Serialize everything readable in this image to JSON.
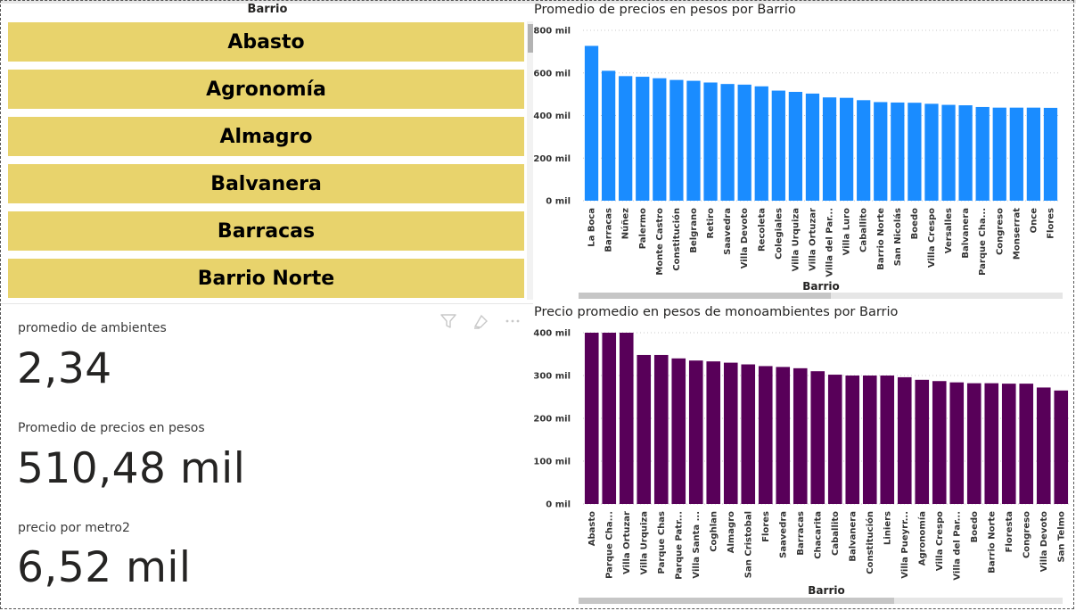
{
  "slicer": {
    "title": "Barrio",
    "items": [
      "Abasto",
      "Agronomía",
      "Almagro",
      "Balvanera",
      "Barracas",
      "Barrio Norte"
    ]
  },
  "cards": [
    {
      "label": "promedio de ambientes",
      "value": "2,34"
    },
    {
      "label": "Promedio de precios en pesos",
      "value": "510,48 mil"
    },
    {
      "label": "precio por metro2",
      "value": "6,52 mil"
    }
  ],
  "visual_header_icons": [
    "filter-icon",
    "focus-mode-icon",
    "more-options-icon"
  ],
  "chart_data": [
    {
      "type": "bar",
      "title": "Promedio de precios en pesos por Barrio",
      "xlabel": "Barrio",
      "ylabel": "",
      "color": "#1a8cff",
      "ylim": [
        0,
        800
      ],
      "yticks": [
        0,
        200,
        400,
        600,
        800
      ],
      "ytick_labels": [
        "0 mil",
        "200 mil",
        "400 mil",
        "600 mil",
        "800 mil"
      ],
      "grid": true,
      "categories": [
        "La Boca",
        "Barracas",
        "Núñez",
        "Palermo",
        "Monte Castro",
        "Constitución",
        "Belgrano",
        "Retiro",
        "Saavedra",
        "Villa Devoto",
        "Recoleta",
        "Colegiales",
        "Villa Urquiza",
        "Villa Ortuzar",
        "Villa del Par...",
        "Villa Luro",
        "Caballito",
        "Barrio Norte",
        "San Nicolás",
        "Boedo",
        "Villa Crespo",
        "Versalles",
        "Balvanera",
        "Parque Cha...",
        "Congreso",
        "Monserrat",
        "Once",
        "Flores"
      ],
      "values": [
        727,
        610,
        585,
        582,
        575,
        567,
        563,
        555,
        548,
        545,
        537,
        517,
        511,
        503,
        485,
        483,
        472,
        463,
        461,
        460,
        455,
        450,
        448,
        440,
        437,
        437,
        437,
        436
      ]
    },
    {
      "type": "bar",
      "title": "Precio promedio en pesos de monoambientes por Barrio",
      "xlabel": "Barrio",
      "ylabel": "",
      "color": "#580059",
      "ylim": [
        0,
        400
      ],
      "yticks": [
        0,
        100,
        200,
        300,
        400
      ],
      "ytick_labels": [
        "0 mil",
        "100 mil",
        "200 mil",
        "300 mil",
        "400 mil"
      ],
      "grid": true,
      "categories": [
        "Abasto",
        "Parque Cha...",
        "Villa Ortuzar",
        "Villa Urquiza",
        "Parque Chas",
        "Parque Patr...",
        "Villa Santa ...",
        "Coghlan",
        "Almagro",
        "San Cristobal",
        "Flores",
        "Saavedra",
        "Barracas",
        "Chacarita",
        "Caballito",
        "Balvanera",
        "Constitución",
        "Liniers",
        "Villa Pueyrr...",
        "Agronomía",
        "Villa Crespo",
        "Villa del Par...",
        "Boedo",
        "Barrio Norte",
        "Floresta",
        "Congreso",
        "Villa Devoto",
        "San Telmo"
      ],
      "values": [
        400,
        400,
        400,
        348,
        348,
        340,
        335,
        333,
        330,
        326,
        322,
        320,
        317,
        310,
        302,
        300,
        300,
        300,
        296,
        290,
        287,
        284,
        282,
        282,
        281,
        281,
        272,
        265
      ]
    }
  ]
}
